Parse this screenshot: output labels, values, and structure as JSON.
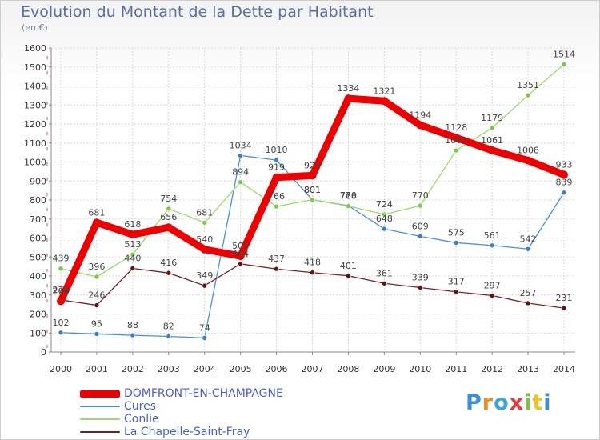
{
  "chart_data": {
    "type": "line",
    "title": "Evolution du Montant de la Dette par Habitant",
    "ylabel": "(en €)",
    "xlabel": "",
    "categories": [
      "2000",
      "2001",
      "2002",
      "2003",
      "2004",
      "2005",
      "2006",
      "2007",
      "2008",
      "2009",
      "2010",
      "2011",
      "2012",
      "2013",
      "2014"
    ],
    "ylim": [
      0,
      1600
    ],
    "yticks": [
      0,
      100,
      200,
      300,
      400,
      500,
      600,
      700,
      800,
      900,
      1000,
      1100,
      1200,
      1300,
      1400,
      1500,
      1600
    ],
    "grid": true,
    "legend_position": "bottom-left",
    "series": [
      {
        "name": "DOMFRONT-EN-CHAMPAGNE",
        "color": "#ee0000",
        "marker": "#ee0000",
        "values": [
          268,
          681,
          618,
          656,
          540,
          505,
          919,
          929,
          1334,
          1321,
          1194,
          1128,
          1061,
          1008,
          933
        ]
      },
      {
        "name": "Cures",
        "color": "#4a90d9",
        "marker": "#3a7fcf",
        "values": [
          102,
          95,
          88,
          82,
          74,
          1034,
          1010,
          801,
          770,
          648,
          609,
          575,
          561,
          542,
          839
        ]
      },
      {
        "name": "Conlie",
        "color": "#99dd66",
        "marker": "#77cc44",
        "values": [
          439,
          396,
          513,
          754,
          681,
          894,
          766,
          801,
          768,
          724,
          770,
          1061,
          1179,
          1351,
          1514
        ]
      },
      {
        "name": "La Chapelle-Saint-Fray",
        "color": "#772222",
        "marker": "#661111",
        "values": [
          274,
          246,
          440,
          416,
          349,
          464,
          437,
          418,
          401,
          361,
          339,
          317,
          297,
          257,
          231
        ]
      }
    ]
  },
  "logo": {
    "letters": [
      "P",
      "r",
      "o",
      "x",
      "i",
      "t",
      "i"
    ]
  }
}
